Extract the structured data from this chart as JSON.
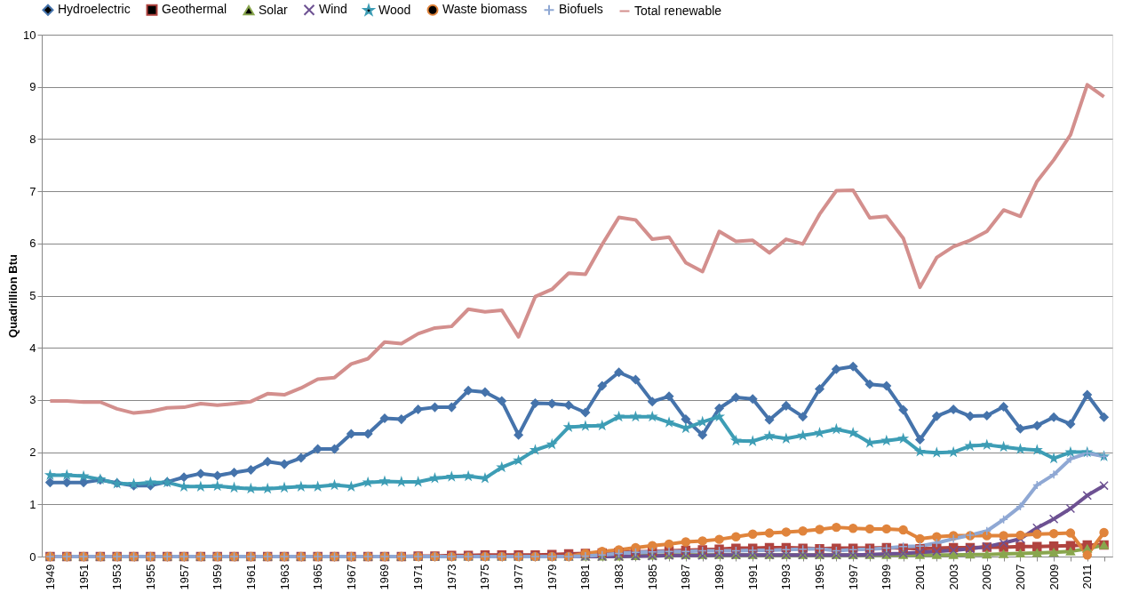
{
  "chart_data": {
    "type": "line",
    "ylabel": "Quadrillion Btu",
    "categories": [
      "1949",
      null,
      "1951",
      null,
      "1953",
      null,
      "1955",
      null,
      "1957",
      null,
      "1959",
      null,
      "1961",
      null,
      "1963",
      null,
      "1965",
      null,
      "1967",
      null,
      "1969",
      null,
      "1971",
      null,
      "1973",
      null,
      "1975",
      null,
      "1977",
      null,
      "1979",
      null,
      "1981",
      null,
      "1983",
      null,
      "1985",
      null,
      "1987",
      null,
      "1989",
      null,
      "1991",
      null,
      "1993",
      null,
      "1995",
      null,
      "1997",
      null,
      "1999",
      null,
      "2001",
      null,
      "2003",
      null,
      "2005",
      null,
      "2007",
      null,
      "2009",
      null,
      "2011",
      null
    ],
    "ylim": [
      0,
      10
    ],
    "yticks": [
      0,
      1,
      2,
      3,
      4,
      5,
      6,
      7,
      8,
      9,
      10
    ],
    "grid": "y",
    "legend": "top",
    "series": [
      {
        "name": "Hydroelectric",
        "color": "#4573ab",
        "marker": "diamond",
        "values": [
          1.42,
          1.42,
          1.42,
          1.47,
          1.41,
          1.36,
          1.36,
          1.43,
          1.52,
          1.59,
          1.55,
          1.61,
          1.66,
          1.82,
          1.77,
          1.89,
          2.06,
          2.06,
          2.35,
          2.35,
          2.65,
          2.63,
          2.82,
          2.86,
          2.86,
          3.18,
          3.15,
          2.98,
          2.33,
          2.94,
          2.93,
          2.9,
          2.76,
          3.27,
          3.53,
          3.39,
          2.97,
          3.07,
          2.63,
          2.33,
          2.84,
          3.05,
          3.02,
          2.62,
          2.89,
          2.68,
          3.21,
          3.59,
          3.64,
          3.3,
          3.27,
          2.81,
          2.24,
          2.69,
          2.82,
          2.69,
          2.7,
          2.87,
          2.45,
          2.51,
          2.67,
          2.54,
          3.1,
          2.67
        ]
      },
      {
        "name": "Geothermal",
        "color": "#b0433f",
        "marker": "square",
        "values": [
          0,
          0,
          0,
          0,
          0,
          0,
          0,
          0,
          0,
          0,
          0,
          0,
          0,
          0,
          0,
          0,
          0,
          0,
          0,
          0,
          0,
          0,
          0.01,
          0.01,
          0.02,
          0.02,
          0.03,
          0.03,
          0.03,
          0.03,
          0.04,
          0.05,
          0.06,
          0.07,
          0.08,
          0.09,
          0.1,
          0.11,
          0.12,
          0.13,
          0.14,
          0.16,
          0.16,
          0.17,
          0.17,
          0.16,
          0.15,
          0.16,
          0.16,
          0.16,
          0.17,
          0.16,
          0.15,
          0.16,
          0.17,
          0.17,
          0.18,
          0.18,
          0.19,
          0.19,
          0.2,
          0.21,
          0.22,
          0.22
        ]
      },
      {
        "name": "Solar",
        "color": "#89a64e",
        "marker": "triangle",
        "values": [
          0,
          0,
          0,
          0,
          0,
          0,
          0,
          0,
          0,
          0,
          0,
          0,
          0,
          0,
          0,
          0,
          0,
          0,
          0,
          0,
          0,
          0,
          0,
          0,
          0,
          0,
          0,
          0,
          0,
          0,
          0,
          0,
          0,
          0,
          0,
          0.01,
          0.02,
          0.03,
          0.03,
          0.03,
          0.03,
          0.03,
          0.03,
          0.03,
          0.03,
          0.03,
          0.03,
          0.03,
          0.03,
          0.03,
          0.03,
          0.03,
          0.03,
          0.03,
          0.03,
          0.04,
          0.04,
          0.05,
          0.06,
          0.07,
          0.08,
          0.1,
          0.15,
          0.22
        ]
      },
      {
        "name": "Wind",
        "color": "#6d5192",
        "marker": "x",
        "values": [
          0,
          0,
          0,
          0,
          0,
          0,
          0,
          0,
          0,
          0,
          0,
          0,
          0,
          0,
          0,
          0,
          0,
          0,
          0,
          0,
          0,
          0,
          0,
          0,
          0,
          0,
          0,
          0,
          0,
          0,
          0,
          0,
          0,
          0,
          0,
          0.01,
          0.01,
          0.02,
          0.02,
          0.02,
          0.03,
          0.03,
          0.03,
          0.03,
          0.03,
          0.03,
          0.03,
          0.03,
          0.03,
          0.04,
          0.05,
          0.06,
          0.08,
          0.1,
          0.12,
          0.15,
          0.19,
          0.26,
          0.34,
          0.55,
          0.72,
          0.92,
          1.17,
          1.36
        ]
      },
      {
        "name": "Wood",
        "color": "#3d9db5",
        "marker": "star",
        "values": [
          1.56,
          1.56,
          1.54,
          1.48,
          1.4,
          1.39,
          1.42,
          1.42,
          1.34,
          1.34,
          1.35,
          1.32,
          1.3,
          1.3,
          1.32,
          1.34,
          1.34,
          1.37,
          1.34,
          1.42,
          1.44,
          1.43,
          1.43,
          1.5,
          1.53,
          1.54,
          1.5,
          1.71,
          1.84,
          2.04,
          2.15,
          2.48,
          2.5,
          2.51,
          2.68,
          2.68,
          2.68,
          2.57,
          2.46,
          2.58,
          2.68,
          2.22,
          2.21,
          2.31,
          2.26,
          2.32,
          2.37,
          2.44,
          2.37,
          2.18,
          2.22,
          2.26,
          2.01,
          1.99,
          2.0,
          2.12,
          2.14,
          2.1,
          2.06,
          2.04,
          1.88,
          2.0,
          2.0,
          1.92
        ]
      },
      {
        "name": "Waste biomass",
        "color": "#e0843c",
        "marker": "circle",
        "values": [
          0,
          0,
          0,
          0,
          0,
          0,
          0,
          0,
          0,
          0,
          0,
          0,
          0,
          0,
          0,
          0,
          0,
          0,
          0,
          0,
          0,
          0,
          0,
          0,
          0,
          0,
          0,
          0,
          0,
          0,
          0,
          0,
          0.06,
          0.1,
          0.13,
          0.17,
          0.21,
          0.24,
          0.28,
          0.3,
          0.33,
          0.38,
          0.43,
          0.45,
          0.47,
          0.49,
          0.52,
          0.56,
          0.54,
          0.53,
          0.53,
          0.51,
          0.34,
          0.38,
          0.4,
          0.4,
          0.4,
          0.4,
          0.41,
          0.43,
          0.44,
          0.45,
          0.03,
          0.46
        ]
      },
      {
        "name": "Biofuels",
        "color": "#8fa8d4",
        "marker": "cross",
        "values": [
          0,
          0,
          0,
          0,
          0,
          0,
          0,
          0,
          0,
          0,
          0,
          0,
          0,
          0,
          0,
          0,
          0,
          0,
          0,
          0,
          0,
          0,
          0,
          0,
          0,
          0,
          0,
          0,
          0,
          0,
          0,
          0,
          0.01,
          0.03,
          0.06,
          0.08,
          0.09,
          0.1,
          0.1,
          0.11,
          0.11,
          0.11,
          0.12,
          0.12,
          0.13,
          0.14,
          0.15,
          0.11,
          0.13,
          0.14,
          0.16,
          0.19,
          0.2,
          0.26,
          0.34,
          0.41,
          0.49,
          0.71,
          0.96,
          1.37,
          1.57,
          1.87,
          1.98,
          1.92
        ]
      },
      {
        "name": "Total renewable",
        "color": "#d38f8d",
        "marker": "none",
        "values": [
          2.98,
          2.98,
          2.96,
          2.96,
          2.83,
          2.75,
          2.78,
          2.85,
          2.86,
          2.93,
          2.9,
          2.93,
          2.97,
          3.12,
          3.1,
          3.23,
          3.4,
          3.43,
          3.69,
          3.79,
          4.11,
          4.08,
          4.27,
          4.38,
          4.41,
          4.74,
          4.69,
          4.72,
          4.21,
          4.98,
          5.12,
          5.43,
          5.41,
          5.98,
          6.5,
          6.45,
          6.08,
          6.12,
          5.63,
          5.46,
          6.23,
          6.04,
          6.06,
          5.82,
          6.08,
          5.99,
          6.56,
          7.01,
          7.02,
          6.49,
          6.52,
          6.1,
          5.16,
          5.73,
          5.94,
          6.06,
          6.23,
          6.64,
          6.52,
          7.19,
          7.6,
          8.08,
          9.04,
          8.81
        ]
      }
    ]
  }
}
